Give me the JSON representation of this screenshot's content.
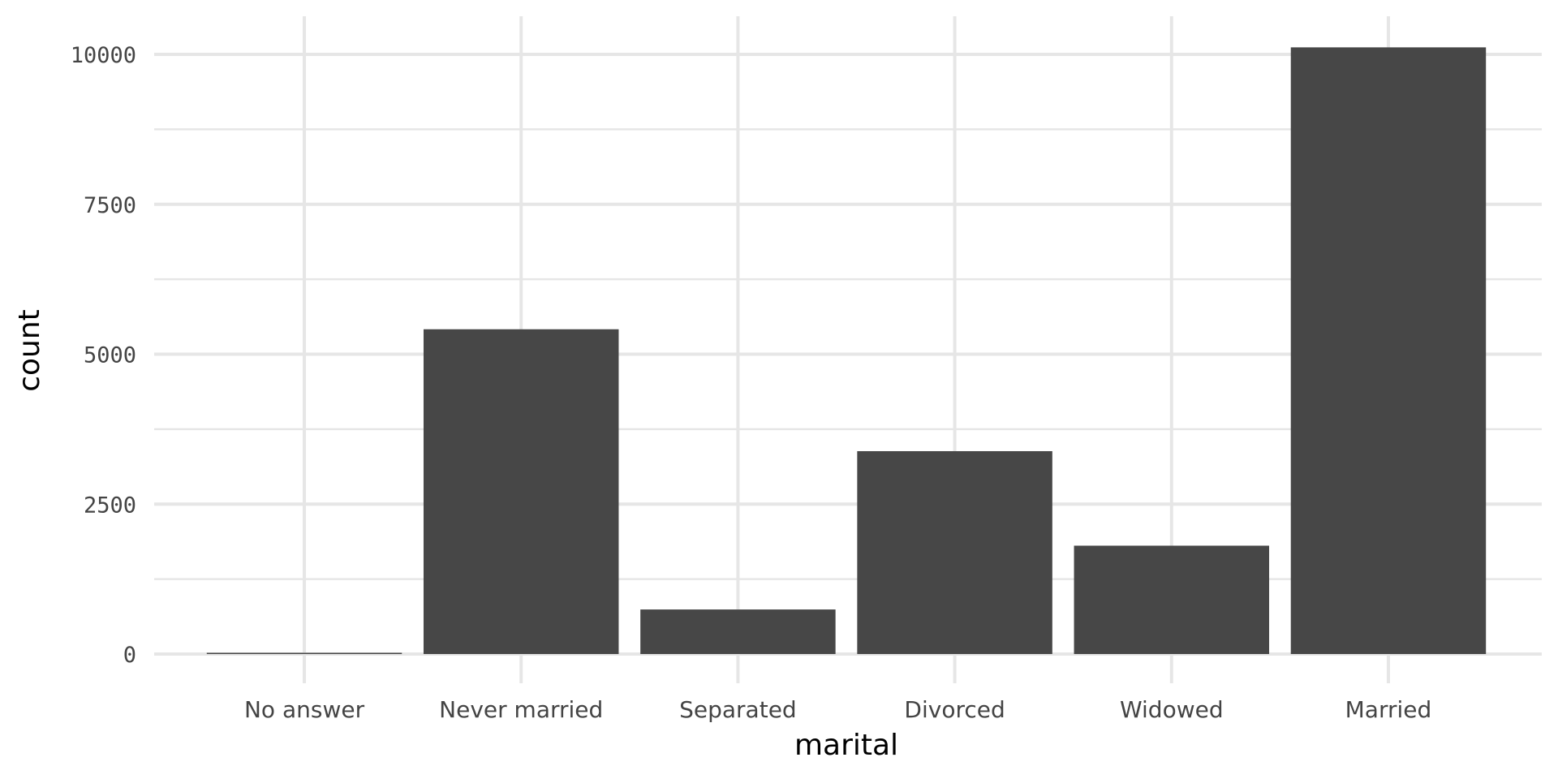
{
  "chart_data": {
    "type": "bar",
    "title": "",
    "xlabel": "marital",
    "ylabel": "count",
    "categories": [
      "No answer",
      "Never married",
      "Separated",
      "Divorced",
      "Widowed",
      "Married"
    ],
    "values": [
      17,
      5416,
      743,
      3383,
      1807,
      10117
    ],
    "ylim": [
      0,
      10600
    ],
    "yticks": [
      0,
      2500,
      5000,
      7500,
      10000
    ],
    "ytick_labels": [
      "0",
      "2500",
      "5000",
      "7500",
      "10000"
    ],
    "grid": true,
    "legend": "none",
    "bar_color": "#474747",
    "grid_color": "#e6e6e6"
  }
}
